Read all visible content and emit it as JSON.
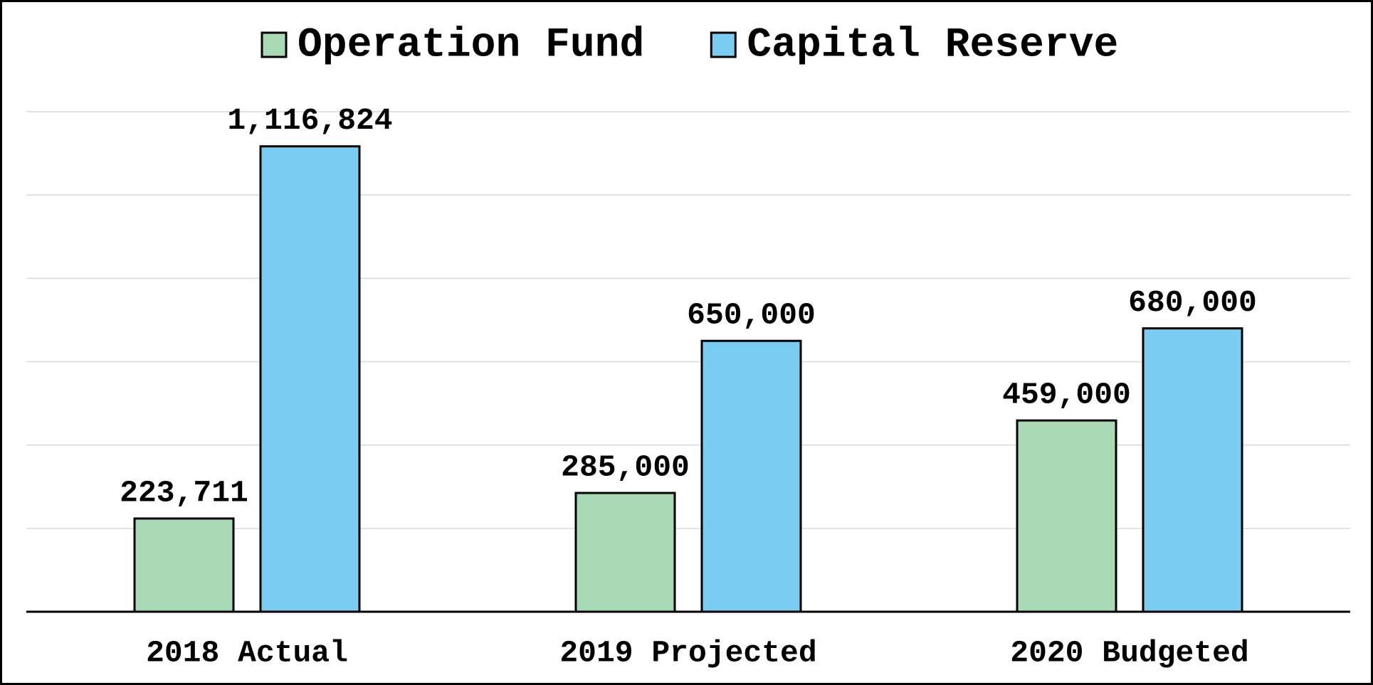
{
  "chart_data": {
    "type": "bar",
    "categories": [
      "2018 Actual",
      "2019 Projected",
      "2020 Budgeted"
    ],
    "series": [
      {
        "name": "Operation Fund",
        "color": "#a8d8b4",
        "values": [
          223711,
          285000,
          459000
        ],
        "value_labels": [
          "223,711",
          "285,000",
          "459,000"
        ]
      },
      {
        "name": "Capital Reserve",
        "color": "#7acdf0",
        "values": [
          1116824,
          650000,
          680000
        ],
        "value_labels": [
          "1,116,824",
          "650,000",
          "680,000"
        ]
      }
    ],
    "ylim": [
      0,
      1200000
    ],
    "yticks": [
      0,
      200000,
      400000,
      600000,
      800000,
      1000000,
      1200000
    ],
    "grid": true,
    "legend": "top"
  }
}
